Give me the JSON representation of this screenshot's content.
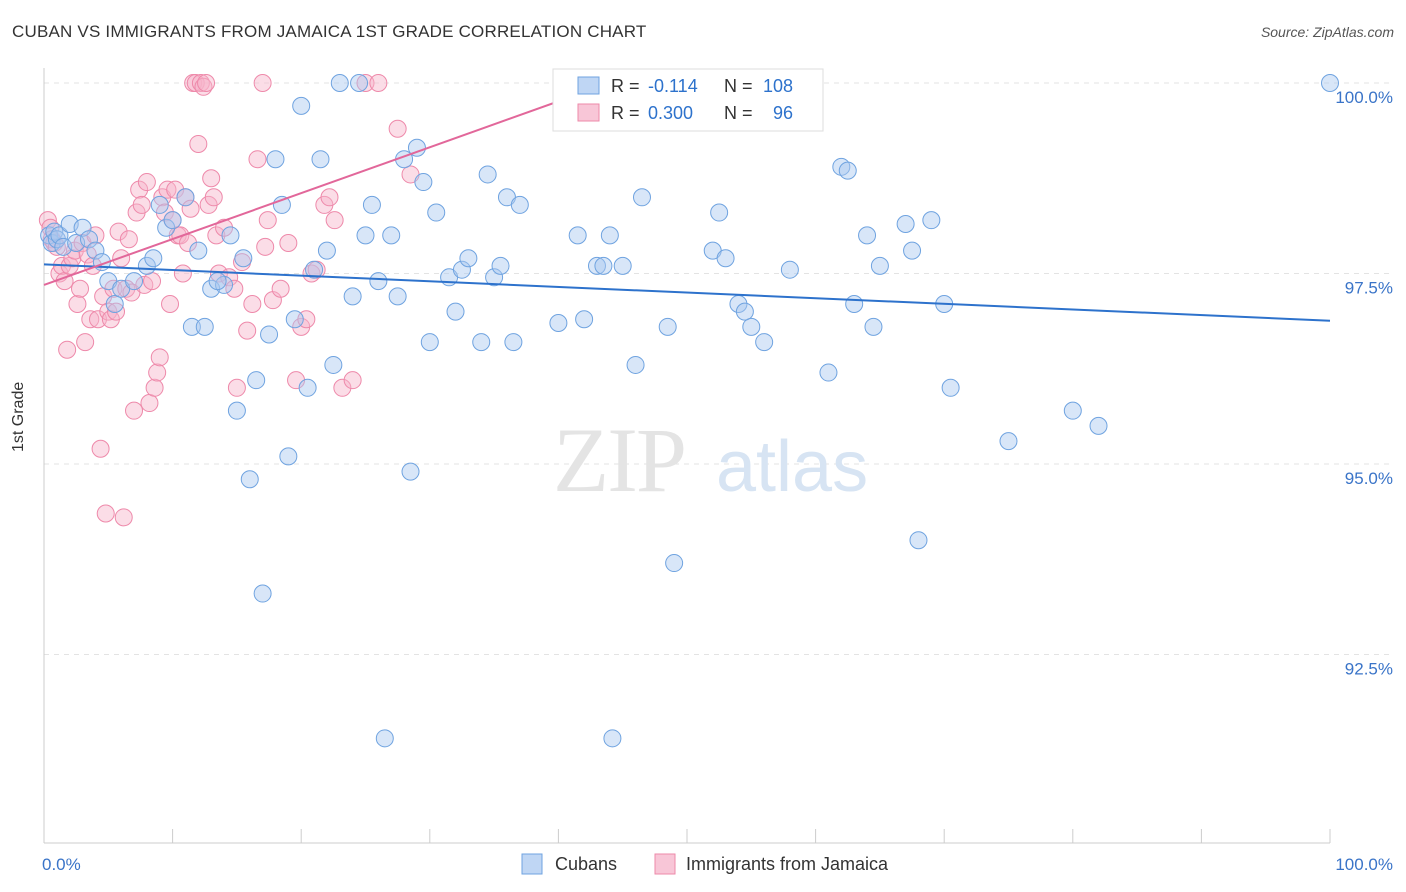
{
  "header": {
    "title": "CUBAN VS IMMIGRANTS FROM JAMAICA 1ST GRADE CORRELATION CHART",
    "source": "Source: ZipAtlas.com"
  },
  "watermark": {
    "zip": "ZIP",
    "atlas": "atlas"
  },
  "legend_box": {
    "rows": [
      {
        "r_label": "R =",
        "r_value": "-0.114",
        "n_label": "N =",
        "n_value": "108"
      },
      {
        "r_label": "R =",
        "r_value": "0.300",
        "n_label": "N =",
        "n_value": "96"
      }
    ]
  },
  "bottom_legend": {
    "items": [
      "Cubans",
      "Immigrants from Jamaica"
    ]
  },
  "colors": {
    "blue_fill": "#a9c8f0",
    "blue_stroke": "#6fa3e0",
    "blue_line": "#2d72cc",
    "pink_fill": "#f6b3c9",
    "pink_stroke": "#ee89aa",
    "pink_line": "#e2679a",
    "axis_text": "#3a74c8",
    "grid": "#e3e3e3"
  },
  "chart_data": {
    "type": "scatter",
    "title": "CUBAN VS IMMIGRANTS FROM JAMAICA 1ST GRADE CORRELATION CHART",
    "xlabel": "",
    "ylabel": "1st Grade",
    "xlim": [
      0,
      100
    ],
    "ylim": [
      90.2,
      100.4
    ],
    "x_tick_labels": [
      "0.0%",
      "100.0%"
    ],
    "y_ticks": [
      92.5,
      95.0,
      97.5,
      100.0
    ],
    "y_tick_labels": [
      "92.5%",
      "95.0%",
      "97.5%",
      "100.0%"
    ],
    "grid": true,
    "series": [
      {
        "name": "Cubans",
        "color": "#6fa3e0",
        "r": -0.114,
        "n": 108,
        "trend": {
          "x": [
            0,
            100
          ],
          "y": [
            97.62,
            96.88
          ]
        },
        "points": [
          [
            0.4,
            98.0
          ],
          [
            0.6,
            97.9
          ],
          [
            0.8,
            98.05
          ],
          [
            1.0,
            97.95
          ],
          [
            1.2,
            98.0
          ],
          [
            1.5,
            97.85
          ],
          [
            2.0,
            98.15
          ],
          [
            2.5,
            97.9
          ],
          [
            3.0,
            98.1
          ],
          [
            3.5,
            97.95
          ],
          [
            4.0,
            97.8
          ],
          [
            4.5,
            97.65
          ],
          [
            5.0,
            97.4
          ],
          [
            5.5,
            97.1
          ],
          [
            6.0,
            97.3
          ],
          [
            7.0,
            97.4
          ],
          [
            8.0,
            97.6
          ],
          [
            8.5,
            97.7
          ],
          [
            9.0,
            98.4
          ],
          [
            9.5,
            98.1
          ],
          [
            10.0,
            98.2
          ],
          [
            11.0,
            98.5
          ],
          [
            11.5,
            96.8
          ],
          [
            12.0,
            97.8
          ],
          [
            12.5,
            96.8
          ],
          [
            13.0,
            97.3
          ],
          [
            14.0,
            97.35
          ],
          [
            14.5,
            98.0
          ],
          [
            15.0,
            95.7
          ],
          [
            15.5,
            97.7
          ],
          [
            16.0,
            94.8
          ],
          [
            16.5,
            96.1
          ],
          [
            17.0,
            93.3
          ],
          [
            17.5,
            96.7
          ],
          [
            18.0,
            99.0
          ],
          [
            18.5,
            98.4
          ],
          [
            19.0,
            95.1
          ],
          [
            19.5,
            96.9
          ],
          [
            20.0,
            99.7
          ],
          [
            20.5,
            96.0
          ],
          [
            21.0,
            97.55
          ],
          [
            21.5,
            99.0
          ],
          [
            22.0,
            97.8
          ],
          [
            22.5,
            96.3
          ],
          [
            23.0,
            100.0
          ],
          [
            24.0,
            97.2
          ],
          [
            24.5,
            100.0
          ],
          [
            25.0,
            98.0
          ],
          [
            25.5,
            98.4
          ],
          [
            26.0,
            97.4
          ],
          [
            26.5,
            91.4
          ],
          [
            27.0,
            98.0
          ],
          [
            27.5,
            97.2
          ],
          [
            28.0,
            99.0
          ],
          [
            28.5,
            94.9
          ],
          [
            29.0,
            99.15
          ],
          [
            29.5,
            98.7
          ],
          [
            30.0,
            96.6
          ],
          [
            30.5,
            98.3
          ],
          [
            31.5,
            97.45
          ],
          [
            32.0,
            97.0
          ],
          [
            32.5,
            97.55
          ],
          [
            33.0,
            97.7
          ],
          [
            34.0,
            96.6
          ],
          [
            34.5,
            98.8
          ],
          [
            35.0,
            97.45
          ],
          [
            35.5,
            97.6
          ],
          [
            36.0,
            98.5
          ],
          [
            37.0,
            98.4
          ],
          [
            40.0,
            96.85
          ],
          [
            41.5,
            98.0
          ],
          [
            42.0,
            96.9
          ],
          [
            43.0,
            97.6
          ],
          [
            43.5,
            97.6
          ],
          [
            44.0,
            98.0
          ],
          [
            44.2,
            91.4
          ],
          [
            45.0,
            97.6
          ],
          [
            46.0,
            96.3
          ],
          [
            46.5,
            98.5
          ],
          [
            48.5,
            96.8
          ],
          [
            49.0,
            93.7
          ],
          [
            52.0,
            97.8
          ],
          [
            52.5,
            98.3
          ],
          [
            53.0,
            97.7
          ],
          [
            54.0,
            97.1
          ],
          [
            54.5,
            97.0
          ],
          [
            55.0,
            96.8
          ],
          [
            56.0,
            96.6
          ],
          [
            58.0,
            97.55
          ],
          [
            61.0,
            96.2
          ],
          [
            62.0,
            98.9
          ],
          [
            62.5,
            98.85
          ],
          [
            63.0,
            97.1
          ],
          [
            64.0,
            98.0
          ],
          [
            64.5,
            96.8
          ],
          [
            65.0,
            97.6
          ],
          [
            67.0,
            98.15
          ],
          [
            67.5,
            97.8
          ],
          [
            68.0,
            94.0
          ],
          [
            69.0,
            98.2
          ],
          [
            70.0,
            97.1
          ],
          [
            70.5,
            96.0
          ],
          [
            75.0,
            95.3
          ],
          [
            80.0,
            95.7
          ],
          [
            82.0,
            95.5
          ],
          [
            100.0,
            100.0
          ],
          [
            13.5,
            97.4
          ],
          [
            36.5,
            96.6
          ]
        ]
      },
      {
        "name": "Immigrants from Jamaica",
        "color": "#ee89aa",
        "r": 0.3,
        "n": 96,
        "trend": {
          "x": [
            0,
            44
          ],
          "y": [
            97.35,
            100.0
          ]
        },
        "points": [
          [
            0.3,
            98.2
          ],
          [
            0.5,
            98.1
          ],
          [
            0.6,
            97.95
          ],
          [
            0.8,
            97.9
          ],
          [
            1.0,
            97.85
          ],
          [
            1.2,
            97.5
          ],
          [
            1.4,
            97.6
          ],
          [
            1.6,
            97.4
          ],
          [
            1.8,
            96.5
          ],
          [
            2.0,
            97.6
          ],
          [
            2.2,
            97.7
          ],
          [
            2.4,
            97.8
          ],
          [
            2.6,
            97.1
          ],
          [
            2.8,
            97.3
          ],
          [
            3.0,
            97.9
          ],
          [
            3.2,
            96.6
          ],
          [
            3.4,
            97.75
          ],
          [
            3.6,
            96.9
          ],
          [
            3.8,
            97.6
          ],
          [
            4.0,
            98.0
          ],
          [
            4.2,
            96.9
          ],
          [
            4.4,
            95.2
          ],
          [
            4.6,
            97.2
          ],
          [
            4.8,
            94.35
          ],
          [
            5.0,
            97.0
          ],
          [
            5.2,
            96.9
          ],
          [
            5.4,
            97.3
          ],
          [
            5.6,
            97.0
          ],
          [
            5.8,
            98.05
          ],
          [
            6.0,
            97.7
          ],
          [
            6.2,
            94.3
          ],
          [
            6.4,
            97.3
          ],
          [
            6.6,
            97.95
          ],
          [
            6.8,
            97.25
          ],
          [
            7.0,
            95.7
          ],
          [
            7.2,
            98.3
          ],
          [
            7.4,
            98.6
          ],
          [
            7.6,
            98.4
          ],
          [
            7.8,
            97.35
          ],
          [
            8.0,
            98.7
          ],
          [
            8.2,
            95.8
          ],
          [
            8.4,
            97.4
          ],
          [
            8.6,
            96.0
          ],
          [
            8.8,
            96.2
          ],
          [
            9.0,
            96.4
          ],
          [
            9.2,
            98.5
          ],
          [
            9.4,
            98.3
          ],
          [
            9.6,
            98.6
          ],
          [
            9.8,
            97.1
          ],
          [
            10.0,
            98.2
          ],
          [
            10.2,
            98.6
          ],
          [
            10.4,
            98.0
          ],
          [
            10.6,
            98.0
          ],
          [
            10.8,
            97.5
          ],
          [
            11.0,
            98.5
          ],
          [
            11.2,
            97.9
          ],
          [
            11.4,
            98.35
          ],
          [
            11.6,
            100.0
          ],
          [
            11.8,
            100.0
          ],
          [
            12.0,
            99.2
          ],
          [
            12.2,
            100.0
          ],
          [
            12.4,
            99.95
          ],
          [
            12.6,
            100.0
          ],
          [
            12.8,
            98.4
          ],
          [
            13.0,
            98.75
          ],
          [
            13.2,
            98.5
          ],
          [
            13.4,
            98.0
          ],
          [
            13.6,
            97.5
          ],
          [
            14.0,
            98.1
          ],
          [
            14.4,
            97.45
          ],
          [
            14.8,
            97.3
          ],
          [
            15.0,
            96.0
          ],
          [
            15.4,
            97.65
          ],
          [
            15.8,
            96.75
          ],
          [
            16.2,
            97.1
          ],
          [
            16.6,
            99.0
          ],
          [
            17.0,
            100.0
          ],
          [
            17.4,
            98.2
          ],
          [
            17.8,
            97.15
          ],
          [
            18.4,
            97.3
          ],
          [
            19.0,
            97.9
          ],
          [
            19.6,
            96.1
          ],
          [
            20.0,
            96.8
          ],
          [
            20.4,
            96.9
          ],
          [
            20.8,
            97.5
          ],
          [
            21.2,
            97.55
          ],
          [
            21.8,
            98.4
          ],
          [
            22.2,
            98.5
          ],
          [
            22.6,
            98.2
          ],
          [
            23.2,
            96.0
          ],
          [
            24.0,
            96.1
          ],
          [
            25.0,
            100.0
          ],
          [
            26.0,
            100.0
          ],
          [
            27.5,
            99.4
          ],
          [
            28.5,
            98.8
          ],
          [
            17.2,
            97.85
          ]
        ]
      }
    ]
  }
}
